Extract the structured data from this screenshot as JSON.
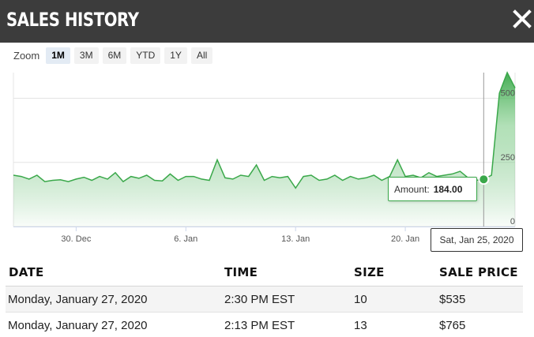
{
  "header": {
    "title": "SALES HISTORY",
    "close_icon": "close-icon"
  },
  "zoom": {
    "label": "Zoom",
    "options": [
      "1M",
      "3M",
      "6M",
      "YTD",
      "1Y",
      "All"
    ],
    "active": "1M"
  },
  "chart_data": {
    "type": "area",
    "x_unit": "date",
    "x_range": [
      "2019-12-26",
      "2020-01-27"
    ],
    "ylim": [
      0,
      600
    ],
    "y_ticks": [
      0,
      250,
      500
    ],
    "x_ticks": [
      "30. Dec",
      "6. Jan",
      "13. Jan",
      "20. Jan"
    ],
    "x_tick_dates": [
      "2019-12-30",
      "2020-01-06",
      "2020-01-13",
      "2020-01-20"
    ],
    "grid": true,
    "color": "#3aa84a",
    "series": [
      {
        "x": [
          "2019-12-26",
          "2019-12-26T12:00",
          "2019-12-27",
          "2019-12-27T12:00",
          "2019-12-28",
          "2019-12-28T12:00",
          "2019-12-29",
          "2019-12-29T12:00",
          "2019-12-30",
          "2019-12-30T12:00",
          "2019-12-31",
          "2019-12-31T12:00",
          "2020-01-01",
          "2020-01-01T12:00",
          "2020-01-02",
          "2020-01-02T12:00",
          "2020-01-03",
          "2020-01-03T12:00",
          "2020-01-04",
          "2020-01-04T12:00",
          "2020-01-05",
          "2020-01-05T12:00",
          "2020-01-06",
          "2020-01-06T12:00",
          "2020-01-07",
          "2020-01-07T12:00",
          "2020-01-08",
          "2020-01-08T12:00",
          "2020-01-09",
          "2020-01-09T12:00",
          "2020-01-10",
          "2020-01-10T12:00",
          "2020-01-11",
          "2020-01-11T12:00",
          "2020-01-12",
          "2020-01-12T12:00",
          "2020-01-13",
          "2020-01-13T12:00",
          "2020-01-14",
          "2020-01-14T12:00",
          "2020-01-15",
          "2020-01-15T12:00",
          "2020-01-16",
          "2020-01-16T12:00",
          "2020-01-17",
          "2020-01-17T12:00",
          "2020-01-18",
          "2020-01-18T12:00",
          "2020-01-19",
          "2020-01-19T12:00",
          "2020-01-20",
          "2020-01-20T12:00",
          "2020-01-21",
          "2020-01-21T12:00",
          "2020-01-22",
          "2020-01-22T12:00",
          "2020-01-23",
          "2020-01-23T12:00",
          "2020-01-24",
          "2020-01-24T12:00",
          "2020-01-25",
          "2020-01-25T12:00",
          "2020-01-26",
          "2020-01-26T12:00",
          "2020-01-27"
        ],
        "y": [
          200,
          195,
          185,
          200,
          175,
          180,
          182,
          175,
          185,
          192,
          180,
          195,
          185,
          210,
          175,
          195,
          188,
          200,
          180,
          178,
          205,
          180,
          195,
          195,
          185,
          180,
          260,
          190,
          185,
          200,
          195,
          240,
          180,
          195,
          190,
          195,
          150,
          195,
          200,
          180,
          185,
          200,
          180,
          195,
          185,
          190,
          200,
          180,
          195,
          260,
          195,
          200,
          190,
          210,
          195,
          200,
          205,
          215,
          190,
          180,
          184,
          200,
          520,
          600,
          540
        ]
      }
    ],
    "tooltip": {
      "date": "Sat, Jan 25, 2020",
      "label": "Amount:",
      "value": "184.00"
    },
    "highlight_x": "2020-01-25"
  },
  "table": {
    "headers": [
      "DATE",
      "TIME",
      "SIZE",
      "SALE PRICE"
    ],
    "rows": [
      [
        "Monday, January 27, 2020",
        "2:30 PM EST",
        "10",
        "$535"
      ],
      [
        "Monday, January 27, 2020",
        "2:13 PM EST",
        "13",
        "$765"
      ]
    ]
  }
}
